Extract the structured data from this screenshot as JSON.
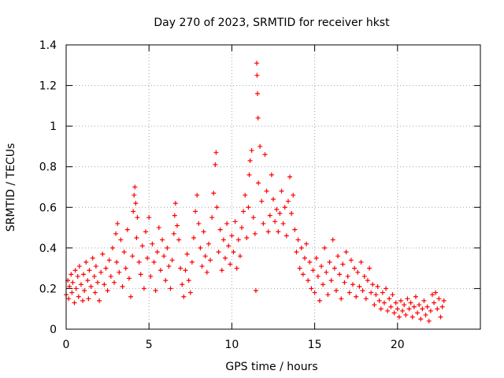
{
  "chart_data": {
    "type": "scatter",
    "title": "Day 270 of 2023, SRMTID for receiver hkst",
    "xlabel": "GPS time / hours",
    "ylabel": "SRMTID / TECUs",
    "xlim": [
      0,
      25
    ],
    "ylim": [
      0,
      1.4
    ],
    "x_ticks": [
      0,
      5,
      10,
      15,
      20
    ],
    "x_tick_labels": [
      "0",
      "5",
      "10",
      "15",
      "20"
    ],
    "y_ticks": [
      0,
      0.2,
      0.4,
      0.6,
      0.8,
      1.0,
      1.2,
      1.4
    ],
    "y_tick_labels": [
      "0",
      "0.2",
      "0.4",
      "0.6",
      "0.8",
      "1",
      "1.2",
      "1.4"
    ],
    "grid": true,
    "marker": "+",
    "color": "#ff0000",
    "series": [
      {
        "name": "SRMTID",
        "points": [
          [
            0.0,
            0.17
          ],
          [
            0.1,
            0.24
          ],
          [
            0.15,
            0.15
          ],
          [
            0.2,
            0.21
          ],
          [
            0.3,
            0.27
          ],
          [
            0.35,
            0.18
          ],
          [
            0.4,
            0.23
          ],
          [
            0.5,
            0.13
          ],
          [
            0.55,
            0.29
          ],
          [
            0.6,
            0.2
          ],
          [
            0.7,
            0.26
          ],
          [
            0.75,
            0.16
          ],
          [
            0.8,
            0.31
          ],
          [
            0.9,
            0.22
          ],
          [
            1.0,
            0.14
          ],
          [
            1.05,
            0.27
          ],
          [
            1.1,
            0.19
          ],
          [
            1.2,
            0.33
          ],
          [
            1.3,
            0.24
          ],
          [
            1.35,
            0.15
          ],
          [
            1.4,
            0.29
          ],
          [
            1.5,
            0.21
          ],
          [
            1.6,
            0.35
          ],
          [
            1.7,
            0.26
          ],
          [
            1.75,
            0.18
          ],
          [
            1.8,
            0.31
          ],
          [
            1.9,
            0.23
          ],
          [
            2.0,
            0.14
          ],
          [
            2.1,
            0.28
          ],
          [
            2.2,
            0.37
          ],
          [
            2.3,
            0.22
          ],
          [
            2.4,
            0.3
          ],
          [
            2.5,
            0.19
          ],
          [
            2.6,
            0.34
          ],
          [
            2.7,
            0.26
          ],
          [
            2.8,
            0.4
          ],
          [
            2.9,
            0.23
          ],
          [
            3.0,
            0.47
          ],
          [
            3.05,
            0.33
          ],
          [
            3.1,
            0.52
          ],
          [
            3.2,
            0.28
          ],
          [
            3.3,
            0.44
          ],
          [
            3.4,
            0.21
          ],
          [
            3.5,
            0.38
          ],
          [
            3.6,
            0.3
          ],
          [
            3.7,
            0.49
          ],
          [
            3.8,
            0.25
          ],
          [
            3.9,
            0.16
          ],
          [
            4.0,
            0.36
          ],
          [
            4.05,
            0.58
          ],
          [
            4.1,
            0.66
          ],
          [
            4.15,
            0.7
          ],
          [
            4.2,
            0.62
          ],
          [
            4.25,
            0.45
          ],
          [
            4.3,
            0.55
          ],
          [
            4.4,
            0.33
          ],
          [
            4.5,
            0.27
          ],
          [
            4.6,
            0.41
          ],
          [
            4.7,
            0.2
          ],
          [
            4.8,
            0.48
          ],
          [
            4.9,
            0.35
          ],
          [
            5.0,
            0.55
          ],
          [
            5.1,
            0.26
          ],
          [
            5.2,
            0.42
          ],
          [
            5.3,
            0.33
          ],
          [
            5.4,
            0.19
          ],
          [
            5.5,
            0.38
          ],
          [
            5.6,
            0.5
          ],
          [
            5.7,
            0.29
          ],
          [
            5.8,
            0.44
          ],
          [
            5.9,
            0.36
          ],
          [
            6.0,
            0.24
          ],
          [
            6.1,
            0.4
          ],
          [
            6.2,
            0.31
          ],
          [
            6.3,
            0.2
          ],
          [
            6.4,
            0.34
          ],
          [
            6.5,
            0.47
          ],
          [
            6.55,
            0.56
          ],
          [
            6.6,
            0.62
          ],
          [
            6.7,
            0.51
          ],
          [
            6.8,
            0.44
          ],
          [
            6.9,
            0.3
          ],
          [
            7.0,
            0.22
          ],
          [
            7.1,
            0.16
          ],
          [
            7.2,
            0.29
          ],
          [
            7.3,
            0.37
          ],
          [
            7.4,
            0.24
          ],
          [
            7.5,
            0.18
          ],
          [
            7.6,
            0.33
          ],
          [
            7.7,
            0.45
          ],
          [
            7.8,
            0.58
          ],
          [
            7.9,
            0.66
          ],
          [
            8.0,
            0.52
          ],
          [
            8.1,
            0.4
          ],
          [
            8.2,
            0.31
          ],
          [
            8.3,
            0.48
          ],
          [
            8.4,
            0.36
          ],
          [
            8.5,
            0.28
          ],
          [
            8.6,
            0.42
          ],
          [
            8.7,
            0.34
          ],
          [
            8.8,
            0.55
          ],
          [
            8.9,
            0.67
          ],
          [
            9.0,
            0.81
          ],
          [
            9.05,
            0.87
          ],
          [
            9.1,
            0.6
          ],
          [
            9.2,
            0.38
          ],
          [
            9.3,
            0.49
          ],
          [
            9.4,
            0.29
          ],
          [
            9.5,
            0.44
          ],
          [
            9.6,
            0.35
          ],
          [
            9.7,
            0.52
          ],
          [
            9.8,
            0.41
          ],
          [
            9.9,
            0.32
          ],
          [
            10.0,
            0.46
          ],
          [
            10.1,
            0.38
          ],
          [
            10.2,
            0.53
          ],
          [
            10.3,
            0.3
          ],
          [
            10.4,
            0.44
          ],
          [
            10.5,
            0.36
          ],
          [
            10.6,
            0.5
          ],
          [
            10.7,
            0.58
          ],
          [
            10.8,
            0.66
          ],
          [
            10.9,
            0.45
          ],
          [
            11.0,
            0.6
          ],
          [
            11.05,
            0.76
          ],
          [
            11.1,
            0.83
          ],
          [
            11.2,
            0.88
          ],
          [
            11.3,
            0.55
          ],
          [
            11.4,
            0.47
          ],
          [
            11.45,
            0.19
          ],
          [
            11.5,
            1.31
          ],
          [
            11.52,
            1.25
          ],
          [
            11.55,
            1.16
          ],
          [
            11.58,
            1.04
          ],
          [
            11.6,
            0.72
          ],
          [
            11.7,
            0.9
          ],
          [
            11.8,
            0.63
          ],
          [
            11.9,
            0.52
          ],
          [
            12.0,
            0.86
          ],
          [
            12.1,
            0.68
          ],
          [
            12.2,
            0.48
          ],
          [
            12.3,
            0.56
          ],
          [
            12.4,
            0.76
          ],
          [
            12.5,
            0.64
          ],
          [
            12.6,
            0.53
          ],
          [
            12.7,
            0.59
          ],
          [
            12.8,
            0.48
          ],
          [
            12.9,
            0.57
          ],
          [
            13.0,
            0.68
          ],
          [
            13.1,
            0.52
          ],
          [
            13.2,
            0.6
          ],
          [
            13.3,
            0.46
          ],
          [
            13.4,
            0.63
          ],
          [
            13.5,
            0.75
          ],
          [
            13.6,
            0.57
          ],
          [
            13.7,
            0.66
          ],
          [
            13.8,
            0.49
          ],
          [
            13.9,
            0.38
          ],
          [
            14.0,
            0.44
          ],
          [
            14.1,
            0.3
          ],
          [
            14.2,
            0.4
          ],
          [
            14.3,
            0.27
          ],
          [
            14.4,
            0.35
          ],
          [
            14.5,
            0.42
          ],
          [
            14.6,
            0.24
          ],
          [
            14.7,
            0.33
          ],
          [
            14.8,
            0.2
          ],
          [
            14.9,
            0.29
          ],
          [
            15.0,
            0.18
          ],
          [
            15.1,
            0.35
          ],
          [
            15.2,
            0.26
          ],
          [
            15.3,
            0.14
          ],
          [
            15.4,
            0.31
          ],
          [
            15.5,
            0.22
          ],
          [
            15.6,
            0.4
          ],
          [
            15.7,
            0.28
          ],
          [
            15.8,
            0.17
          ],
          [
            15.9,
            0.33
          ],
          [
            16.0,
            0.24
          ],
          [
            16.1,
            0.44
          ],
          [
            16.2,
            0.3
          ],
          [
            16.3,
            0.19
          ],
          [
            16.4,
            0.36
          ],
          [
            16.5,
            0.27
          ],
          [
            16.6,
            0.15
          ],
          [
            16.7,
            0.32
          ],
          [
            16.8,
            0.23
          ],
          [
            16.9,
            0.38
          ],
          [
            17.0,
            0.26
          ],
          [
            17.1,
            0.18
          ],
          [
            17.2,
            0.34
          ],
          [
            17.3,
            0.22
          ],
          [
            17.4,
            0.3
          ],
          [
            17.5,
            0.16
          ],
          [
            17.6,
            0.28
          ],
          [
            17.7,
            0.21
          ],
          [
            17.8,
            0.33
          ],
          [
            17.9,
            0.19
          ],
          [
            18.0,
            0.26
          ],
          [
            18.1,
            0.15
          ],
          [
            18.2,
            0.24
          ],
          [
            18.3,
            0.3
          ],
          [
            18.4,
            0.18
          ],
          [
            18.5,
            0.22
          ],
          [
            18.6,
            0.12
          ],
          [
            18.7,
            0.17
          ],
          [
            18.8,
            0.21
          ],
          [
            18.9,
            0.14
          ],
          [
            19.0,
            0.1
          ],
          [
            19.1,
            0.18
          ],
          [
            19.2,
            0.13
          ],
          [
            19.3,
            0.2
          ],
          [
            19.4,
            0.09
          ],
          [
            19.5,
            0.15
          ],
          [
            19.6,
            0.11
          ],
          [
            19.7,
            0.17
          ],
          [
            19.8,
            0.08
          ],
          [
            19.9,
            0.13
          ],
          [
            20.0,
            0.1
          ],
          [
            20.1,
            0.06
          ],
          [
            20.2,
            0.14
          ],
          [
            20.3,
            0.09
          ],
          [
            20.4,
            0.12
          ],
          [
            20.5,
            0.07
          ],
          [
            20.6,
            0.15
          ],
          [
            20.7,
            0.1
          ],
          [
            20.8,
            0.13
          ],
          [
            20.9,
            0.06
          ],
          [
            21.0,
            0.11
          ],
          [
            21.1,
            0.16
          ],
          [
            21.2,
            0.08
          ],
          [
            21.3,
            0.12
          ],
          [
            21.4,
            0.05
          ],
          [
            21.5,
            0.1
          ],
          [
            21.6,
            0.14
          ],
          [
            21.7,
            0.07
          ],
          [
            21.8,
            0.11
          ],
          [
            21.9,
            0.04
          ],
          [
            22.0,
            0.09
          ],
          [
            22.1,
            0.17
          ],
          [
            22.2,
            0.13
          ],
          [
            22.3,
            0.18
          ],
          [
            22.4,
            0.1
          ],
          [
            22.5,
            0.15
          ],
          [
            22.6,
            0.06
          ],
          [
            22.7,
            0.11
          ],
          [
            22.8,
            0.14
          ]
        ]
      }
    ]
  }
}
